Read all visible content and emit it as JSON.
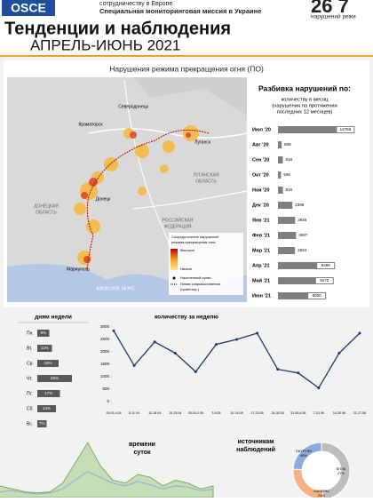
{
  "header": {
    "org_line1": "сотрудничеству в Европе",
    "org_line2": "Специальная мониторинговая миссия в Украине",
    "total": "26 7",
    "total_caption": "нарушений режи",
    "title": "Тенденции и наблюдения",
    "period": "АПРЕЛЬ-ИЮНЬ 2021",
    "logo": "OSCE"
  },
  "map": {
    "title": "Нарушения режима прекращения огня (ПО)",
    "places": [
      "Северодонецк",
      "Краматорск",
      "Луганск",
      "Донецк",
      "Мариуполь"
    ],
    "regions": [
      "ЛУГАНСКАЯ",
      "ОБЛАСТЬ",
      "ДОНЕЦКАЯ",
      "ОБЛАСТЬ",
      "РОССИЙСКАЯ",
      "ФЕДЕРАЦИЯ",
      "АЗОВСКОЕ МОРЕ"
    ],
    "legend": {
      "title1": "Сосредоточение нарушений",
      "title2": "режима прекращения огня",
      "high": "Высокое",
      "low": "Низкое",
      "settlement": "Населенный пункт",
      "line1": "Линия соприкосновения",
      "line2": "(ориентир.)"
    }
  },
  "chart_data": [
    {
      "type": "hbar",
      "title": "Разбивка нарушений по:",
      "subtitle": [
        "количеству в месяц",
        "(нарушения на протяжении",
        "последних 12 месяцев)"
      ],
      "categories": [
        "Июл '20",
        "Авг '20",
        "Сен '20",
        "Окт '20",
        "Ноя '20",
        "Дек '20",
        "Янв '21",
        "Фев '21",
        "Мар '21",
        "Апр '21",
        "Май '21",
        "Июн '21"
      ],
      "values": [
        12758,
        605,
        818,
        506,
        818,
        2396,
        2845,
        3007,
        2824,
        9485,
        9272,
        8000
      ],
      "color": "#7f7f7f",
      "xlim": [
        0,
        13000
      ]
    },
    {
      "type": "hbar_pct",
      "title": "дням недели",
      "categories": [
        "Пн.",
        "Вт.",
        "Ср.",
        "Чт.",
        "Пт.",
        "Сб.",
        "Вс."
      ],
      "values": [
        9,
        11,
        16,
        26,
        17,
        14,
        7
      ],
      "value_labels": [
        "9%",
        "11%",
        "16%",
        "26%",
        "17%",
        "14%",
        "7%"
      ],
      "color": "#595959",
      "xlim": [
        0,
        30
      ]
    },
    {
      "type": "line",
      "title": "количеству за неделю",
      "categories": [
        "29.03-4.04",
        "5-11.04",
        "12-18.04",
        "19-25.04",
        "26.04-2.05",
        "3-9.05",
        "10-16.05",
        "17-23.05",
        "24-30.05",
        "31.05-6.06",
        "7-13.06",
        "14-20.06",
        "21-27.06"
      ],
      "values": [
        2850,
        1450,
        2400,
        1950,
        1200,
        2300,
        2500,
        2750,
        1300,
        1150,
        550,
        1950,
        2750
      ],
      "color": "#1f3864",
      "ylim": [
        0,
        3000
      ],
      "yticks": [
        0,
        500,
        1000,
        1500,
        2000,
        2500,
        3000
      ]
    },
    {
      "type": "area",
      "title": [
        "времени",
        "суток"
      ],
      "series": [
        {
          "color": "#a9d18e",
          "values": [
            20,
            15,
            10,
            8,
            10,
            25,
            60,
            95,
            55,
            30,
            25,
            40,
            35,
            20,
            30,
            25,
            15,
            20
          ]
        },
        {
          "color": "#8faadc",
          "values": [
            10,
            12,
            8,
            6,
            8,
            15,
            30,
            45,
            35,
            25,
            20,
            28,
            22,
            15,
            20,
            18,
            12,
            14
          ]
        }
      ],
      "ylim": [
        0,
        100
      ]
    },
    {
      "type": "donut",
      "title": [
        "источникам",
        "наблюдений"
      ],
      "categories": [
        "ПАТРУЛИ",
        "БПЛА",
        "КАМЕРЫ"
      ],
      "values": [
        49,
        27,
        24
      ],
      "value_labels": [
        "49%",
        "27%",
        "24%"
      ],
      "colors": [
        "#bdbdbd",
        "#f4b183",
        "#8faadc"
      ]
    }
  ]
}
